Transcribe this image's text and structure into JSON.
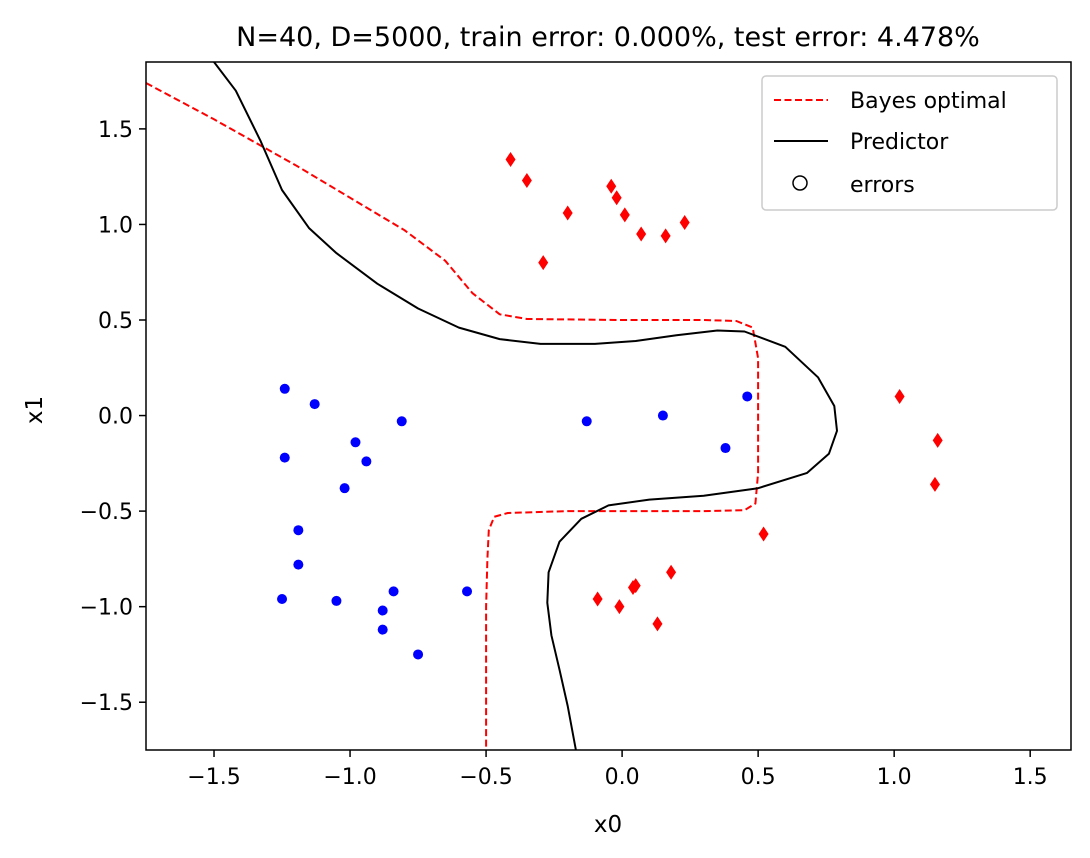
{
  "chart_data": {
    "type": "scatter",
    "title": "N=40, D=5000, train error: 0.000%, test error: 4.478%",
    "xlabel": "x0",
    "ylabel": "x1",
    "xlim": [
      -1.75,
      1.65
    ],
    "ylim": [
      -1.75,
      1.85
    ],
    "xticks": [
      -1.5,
      -1.0,
      -0.5,
      0.0,
      0.5,
      1.0,
      1.5
    ],
    "xtick_labels": [
      "−1.5",
      "−1.0",
      "−0.5",
      "0.0",
      "0.5",
      "1.0",
      "1.5"
    ],
    "yticks": [
      1.5,
      1.0,
      0.5,
      0.0,
      -0.5,
      -1.0,
      -1.5
    ],
    "ytick_labels": [
      "1.5",
      "1.0",
      "0.5",
      "0.0",
      "−0.5",
      "−1.0",
      "−1.5"
    ],
    "grid": false,
    "legend_position": "top-right",
    "legend": [
      {
        "label": "Bayes optimal",
        "style": "dashed",
        "color": "#ff0000"
      },
      {
        "label": "Predictor",
        "style": "solid",
        "color": "#000000"
      },
      {
        "label": "errors",
        "style": "hollow-circle",
        "color": "#000000"
      }
    ],
    "lines": [
      {
        "name": "Bayes optimal",
        "style": "dashed",
        "color": "#ff0000",
        "points": [
          [
            -1.75,
            1.74
          ],
          [
            -1.5,
            1.55
          ],
          [
            -1.2,
            1.31
          ],
          [
            -1.0,
            1.14
          ],
          [
            -0.8,
            0.97
          ],
          [
            -0.65,
            0.81
          ],
          [
            -0.55,
            0.64
          ],
          [
            -0.45,
            0.53
          ],
          [
            -0.35,
            0.505
          ],
          [
            0.0,
            0.5
          ],
          [
            0.3,
            0.5
          ],
          [
            0.42,
            0.495
          ],
          [
            0.48,
            0.46
          ],
          [
            0.5,
            0.3
          ],
          [
            0.5,
            -0.3
          ],
          [
            0.49,
            -0.46
          ],
          [
            0.45,
            -0.495
          ],
          [
            0.3,
            -0.5
          ],
          [
            -0.2,
            -0.5
          ],
          [
            -0.42,
            -0.51
          ],
          [
            -0.47,
            -0.53
          ],
          [
            -0.49,
            -0.6
          ],
          [
            -0.495,
            -0.75
          ],
          [
            -0.5,
            -1.0
          ],
          [
            -0.5,
            -1.75
          ]
        ]
      },
      {
        "name": "Predictor",
        "style": "solid",
        "color": "#000000",
        "points": [
          [
            -1.5,
            1.85
          ],
          [
            -1.42,
            1.7
          ],
          [
            -1.33,
            1.44
          ],
          [
            -1.25,
            1.18
          ],
          [
            -1.15,
            0.98
          ],
          [
            -1.05,
            0.85
          ],
          [
            -0.9,
            0.69
          ],
          [
            -0.75,
            0.56
          ],
          [
            -0.6,
            0.46
          ],
          [
            -0.45,
            0.4
          ],
          [
            -0.3,
            0.375
          ],
          [
            -0.1,
            0.375
          ],
          [
            0.05,
            0.39
          ],
          [
            0.2,
            0.42
          ],
          [
            0.35,
            0.445
          ],
          [
            0.45,
            0.44
          ],
          [
            0.6,
            0.36
          ],
          [
            0.72,
            0.2
          ],
          [
            0.78,
            0.05
          ],
          [
            0.79,
            -0.08
          ],
          [
            0.76,
            -0.2
          ],
          [
            0.68,
            -0.3
          ],
          [
            0.5,
            -0.38
          ],
          [
            0.3,
            -0.42
          ],
          [
            0.1,
            -0.44
          ],
          [
            -0.05,
            -0.47
          ],
          [
            -0.15,
            -0.54
          ],
          [
            -0.23,
            -0.66
          ],
          [
            -0.27,
            -0.82
          ],
          [
            -0.275,
            -0.98
          ],
          [
            -0.26,
            -1.15
          ],
          [
            -0.23,
            -1.33
          ],
          [
            -0.2,
            -1.52
          ],
          [
            -0.17,
            -1.75
          ]
        ]
      }
    ],
    "series": [
      {
        "marker": "diamond",
        "color": "#ff0000",
        "points": [
          [
            -0.41,
            1.34
          ],
          [
            -0.35,
            1.23
          ],
          [
            -0.29,
            0.8
          ],
          [
            -0.2,
            1.06
          ],
          [
            -0.04,
            1.2
          ],
          [
            -0.02,
            1.14
          ],
          [
            0.01,
            1.05
          ],
          [
            0.07,
            0.95
          ],
          [
            0.16,
            0.94
          ],
          [
            0.23,
            1.01
          ],
          [
            1.02,
            0.1
          ],
          [
            1.16,
            -0.13
          ],
          [
            1.15,
            -0.36
          ],
          [
            0.52,
            -0.62
          ],
          [
            -0.09,
            -0.96
          ],
          [
            -0.01,
            -1.0
          ],
          [
            0.04,
            -0.9
          ],
          [
            0.05,
            -0.89
          ],
          [
            0.18,
            -0.82
          ],
          [
            0.13,
            -1.09
          ]
        ]
      },
      {
        "marker": "circle",
        "color": "#0000ff",
        "points": [
          [
            -1.24,
            0.14
          ],
          [
            -1.13,
            0.06
          ],
          [
            -0.81,
            -0.03
          ],
          [
            -0.98,
            -0.14
          ],
          [
            -1.24,
            -0.22
          ],
          [
            -0.94,
            -0.24
          ],
          [
            -1.02,
            -0.38
          ],
          [
            -1.19,
            -0.6
          ],
          [
            -1.19,
            -0.78
          ],
          [
            -1.25,
            -0.96
          ],
          [
            -1.05,
            -0.97
          ],
          [
            -0.88,
            -1.02
          ],
          [
            -0.84,
            -0.92
          ],
          [
            -0.88,
            -1.12
          ],
          [
            -0.75,
            -1.25
          ],
          [
            -0.57,
            -0.92
          ],
          [
            -0.13,
            -0.03
          ],
          [
            0.15,
            0.0
          ],
          [
            0.38,
            -0.17
          ],
          [
            0.46,
            0.1
          ]
        ]
      }
    ]
  }
}
